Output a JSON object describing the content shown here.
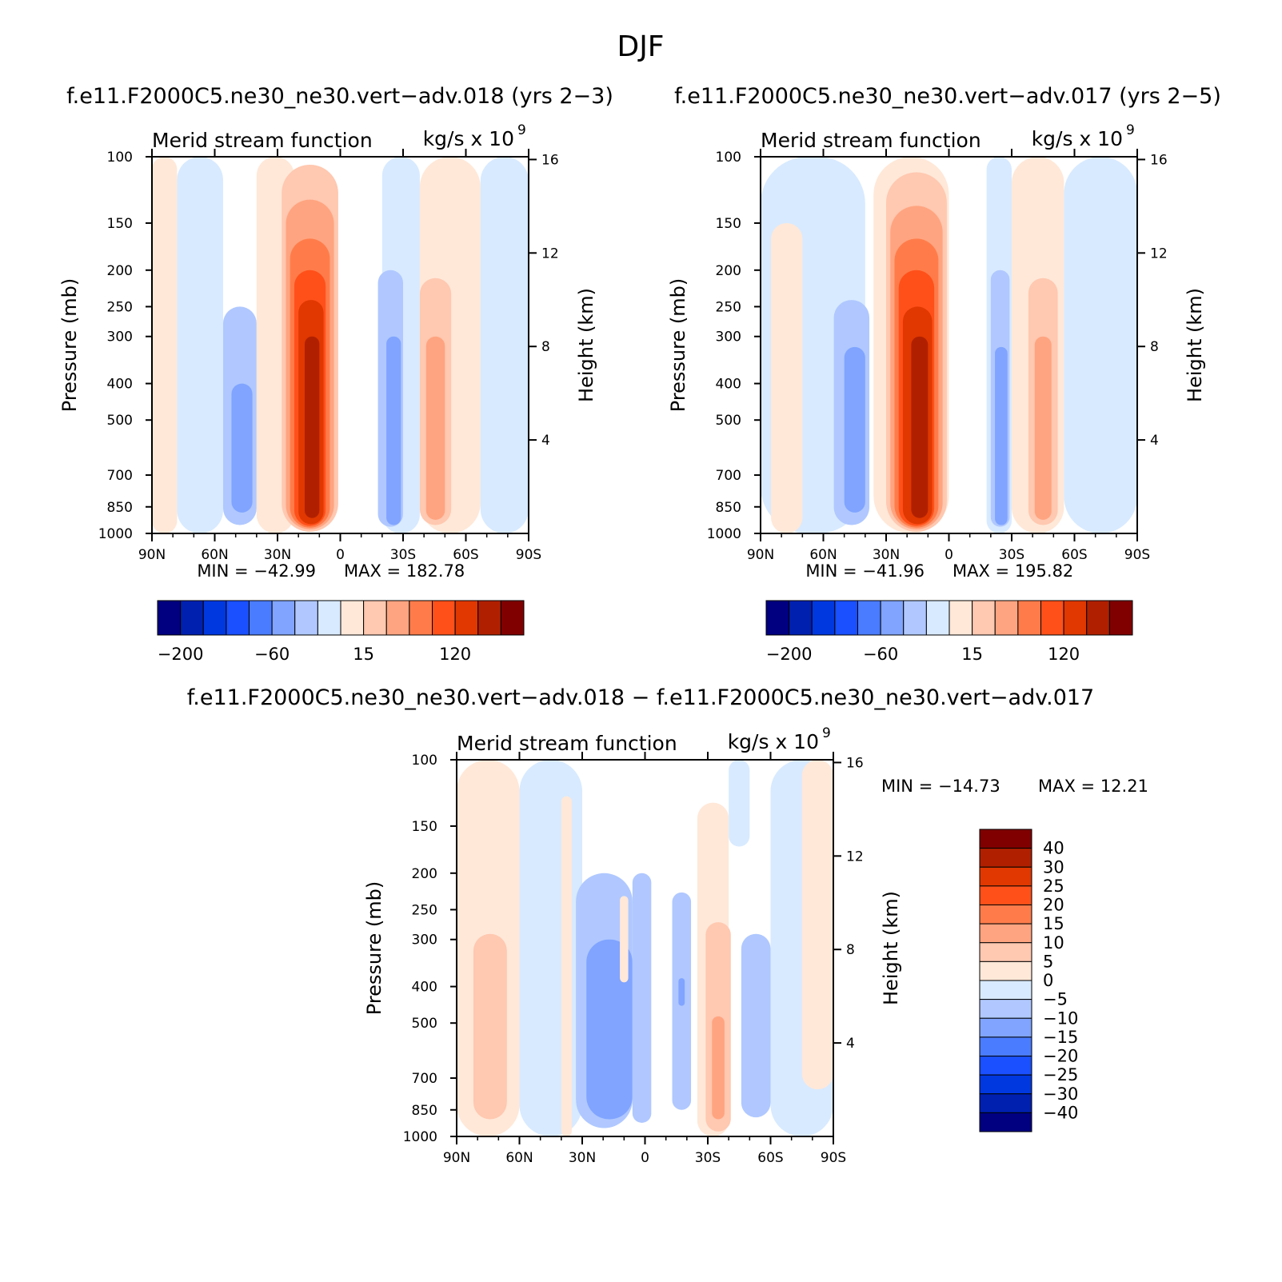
{
  "figure": {
    "title": "DJF",
    "diff_title": "f.e11.F2000C5.ne30_ne30.vert−adv.018 − f.e11.F2000C5.ne30_ne30.vert−adv.017"
  },
  "colors": {
    "levels15": [
      "#000080",
      "#0020b0",
      "#0038e0",
      "#1a50ff",
      "#4a7cff",
      "#80a4ff",
      "#b0c8ff",
      "#d8eaff",
      "#ffe8d8",
      "#ffc8b0",
      "#ffa480",
      "#ff7c4a",
      "#ff501a",
      "#e03800",
      "#b02000",
      "#800000"
    ]
  },
  "chart_data": [
    {
      "type": "heatmap",
      "title": "f.e11.F2000C5.ne30_ne30.vert−adv.018 (yrs 2−3)",
      "left_label": "Merid stream function",
      "right_label": "kg/s x 10",
      "right_label_exp": "9",
      "ylabel": "Pressure (mb)",
      "y2label": "Height (km)",
      "x_ticks": [
        "90N",
        "60N",
        "30N",
        "0",
        "30S",
        "60S",
        "90S"
      ],
      "y_ticks": [
        "100",
        "150",
        "200",
        "250",
        "300",
        "400",
        "500",
        "700",
        "850",
        "1000"
      ],
      "y2_ticks": [
        "16",
        "12",
        "8",
        "4"
      ],
      "min_text": "MIN = −42.99",
      "max_text": "MAX = 182.78",
      "min": -42.99,
      "max": 182.78,
      "colorbar_labels": [
        "−200",
        "−60",
        "15",
        "120"
      ],
      "cells": [
        {
          "lat": [
            90,
            78
          ],
          "p": [
            100,
            1000
          ],
          "level": 8
        },
        {
          "lat": [
            78,
            56
          ],
          "p": [
            100,
            1000
          ],
          "level": 7
        },
        {
          "lat": [
            56,
            40
          ],
          "p": [
            250,
            950
          ],
          "level": 6
        },
        {
          "lat": [
            52,
            42
          ],
          "p": [
            400,
            880
          ],
          "level": 5
        },
        {
          "lat": [
            40,
            22
          ],
          "p": [
            100,
            1000
          ],
          "level": 8
        },
        {
          "lat": [
            28,
            1
          ],
          "p": [
            105,
            990
          ],
          "level": 9
        },
        {
          "lat": [
            26,
            3
          ],
          "p": [
            130,
            975
          ],
          "level": 10
        },
        {
          "lat": [
            24,
            5
          ],
          "p": [
            165,
            965
          ],
          "level": 11
        },
        {
          "lat": [
            22,
            7
          ],
          "p": [
            200,
            955
          ],
          "level": 12
        },
        {
          "lat": [
            20,
            8
          ],
          "p": [
            240,
            945
          ],
          "level": 13
        },
        {
          "lat": [
            17,
            10
          ],
          "p": [
            300,
            910
          ],
          "level": 14
        },
        {
          "lat": [
            -20,
            -38
          ],
          "p": [
            100,
            1000
          ],
          "level": 7
        },
        {
          "lat": [
            -18,
            -30
          ],
          "p": [
            200,
            960
          ],
          "level": 6
        },
        {
          "lat": [
            -22,
            -29
          ],
          "p": [
            300,
            950
          ],
          "level": 5
        },
        {
          "lat": [
            -38,
            -67
          ],
          "p": [
            100,
            1000
          ],
          "level": 8
        },
        {
          "lat": [
            -38,
            -53
          ],
          "p": [
            210,
            950
          ],
          "level": 9
        },
        {
          "lat": [
            -41,
            -50
          ],
          "p": [
            300,
            920
          ],
          "level": 10
        },
        {
          "lat": [
            -67,
            -90
          ],
          "p": [
            100,
            1000
          ],
          "level": 7
        }
      ]
    },
    {
      "type": "heatmap",
      "title": "f.e11.F2000C5.ne30_ne30.vert−adv.017 (yrs 2−5)",
      "left_label": "Merid stream function",
      "right_label": "kg/s x 10",
      "right_label_exp": "9",
      "ylabel": "Pressure (mb)",
      "y2label": "Height (km)",
      "x_ticks": [
        "90N",
        "60N",
        "30N",
        "0",
        "30S",
        "60S",
        "90S"
      ],
      "y_ticks": [
        "100",
        "150",
        "200",
        "250",
        "300",
        "400",
        "500",
        "700",
        "850",
        "1000"
      ],
      "y2_ticks": [
        "16",
        "12",
        "8",
        "4"
      ],
      "min_text": "MIN = −41.96",
      "max_text": "MAX = 195.82",
      "min": -41.96,
      "max": 195.82,
      "colorbar_labels": [
        "−200",
        "−60",
        "15",
        "120"
      ],
      "cells": [
        {
          "lat": [
            90,
            40
          ],
          "p": [
            100,
            1000
          ],
          "level": 7
        },
        {
          "lat": [
            85,
            70
          ],
          "p": [
            150,
            1000
          ],
          "level": 8
        },
        {
          "lat": [
            55,
            38
          ],
          "p": [
            240,
            950
          ],
          "level": 6
        },
        {
          "lat": [
            50,
            40
          ],
          "p": [
            320,
            880
          ],
          "level": 5
        },
        {
          "lat": [
            36,
            0
          ],
          "p": [
            100,
            1000
          ],
          "level": 8
        },
        {
          "lat": [
            30,
            1
          ],
          "p": [
            110,
            990
          ],
          "level": 9
        },
        {
          "lat": [
            28,
            3
          ],
          "p": [
            135,
            975
          ],
          "level": 10
        },
        {
          "lat": [
            26,
            5
          ],
          "p": [
            165,
            965
          ],
          "level": 11
        },
        {
          "lat": [
            24,
            7
          ],
          "p": [
            200,
            955
          ],
          "level": 12
        },
        {
          "lat": [
            22,
            8
          ],
          "p": [
            250,
            945
          ],
          "level": 13
        },
        {
          "lat": [
            18,
            10
          ],
          "p": [
            300,
            910
          ],
          "level": 14
        },
        {
          "lat": [
            -18,
            -30
          ],
          "p": [
            100,
            1000
          ],
          "level": 7
        },
        {
          "lat": [
            -20,
            -29
          ],
          "p": [
            200,
            960
          ],
          "level": 6
        },
        {
          "lat": [
            -22,
            -28
          ],
          "p": [
            320,
            950
          ],
          "level": 5
        },
        {
          "lat": [
            -30,
            -55
          ],
          "p": [
            100,
            1000
          ],
          "level": 8
        },
        {
          "lat": [
            -38,
            -52
          ],
          "p": [
            210,
            950
          ],
          "level": 9
        },
        {
          "lat": [
            -41,
            -49
          ],
          "p": [
            300,
            920
          ],
          "level": 10
        },
        {
          "lat": [
            -55,
            -90
          ],
          "p": [
            100,
            1000
          ],
          "level": 7
        }
      ]
    },
    {
      "type": "heatmap",
      "title": "",
      "left_label": "Merid stream function",
      "right_label": "kg/s x 10",
      "right_label_exp": "9",
      "ylabel": "Pressure (mb)",
      "y2label": "Height (km)",
      "x_ticks": [
        "90N",
        "60N",
        "30N",
        "0",
        "30S",
        "60S",
        "90S"
      ],
      "y_ticks": [
        "100",
        "150",
        "200",
        "250",
        "300",
        "400",
        "500",
        "700",
        "850",
        "1000"
      ],
      "y2_ticks": [
        "16",
        "12",
        "8",
        "4"
      ],
      "min_text": "MIN = −14.73",
      "max_text": "MAX =   12.21",
      "min": -14.73,
      "max": 12.21,
      "colorbar_labels": [
        "40",
        "30",
        "25",
        "20",
        "15",
        "10",
        "5",
        "0",
        "−5",
        "−10",
        "−15",
        "−20",
        "−25",
        "−30",
        "−40"
      ],
      "cells": [
        {
          "lat": [
            90,
            60
          ],
          "p": [
            100,
            1000
          ],
          "level": 8
        },
        {
          "lat": [
            82,
            66
          ],
          "p": [
            290,
            900
          ],
          "level": 9
        },
        {
          "lat": [
            60,
            30
          ],
          "p": [
            100,
            1000
          ],
          "level": 7
        },
        {
          "lat": [
            40,
            35
          ],
          "p": [
            125,
            1000
          ],
          "level": 8
        },
        {
          "lat": [
            33,
            6
          ],
          "p": [
            200,
            950
          ],
          "level": 6
        },
        {
          "lat": [
            28,
            6
          ],
          "p": [
            300,
            900
          ],
          "level": 5
        },
        {
          "lat": [
            12,
            8
          ],
          "p": [
            230,
            390
          ],
          "level": 8
        },
        {
          "lat": [
            6,
            -3
          ],
          "p": [
            200,
            920
          ],
          "level": 6
        },
        {
          "lat": [
            -13,
            -22
          ],
          "p": [
            225,
            850
          ],
          "level": 6
        },
        {
          "lat": [
            -16,
            -19
          ],
          "p": [
            380,
            450
          ],
          "level": 5
        },
        {
          "lat": [
            -25,
            -40
          ],
          "p": [
            130,
            1000
          ],
          "level": 8
        },
        {
          "lat": [
            -29,
            -41
          ],
          "p": [
            270,
            970
          ],
          "level": 9
        },
        {
          "lat": [
            -32,
            -38
          ],
          "p": [
            480,
            900
          ],
          "level": 10
        },
        {
          "lat": [
            -46,
            -60
          ],
          "p": [
            290,
            890
          ],
          "level": 6
        },
        {
          "lat": [
            -40,
            -50
          ],
          "p": [
            100,
            170
          ],
          "level": 7
        },
        {
          "lat": [
            -60,
            -90
          ],
          "p": [
            100,
            1000
          ],
          "level": 7
        },
        {
          "lat": [
            -75,
            -90
          ],
          "p": [
            100,
            750
          ],
          "level": 8
        }
      ]
    }
  ]
}
